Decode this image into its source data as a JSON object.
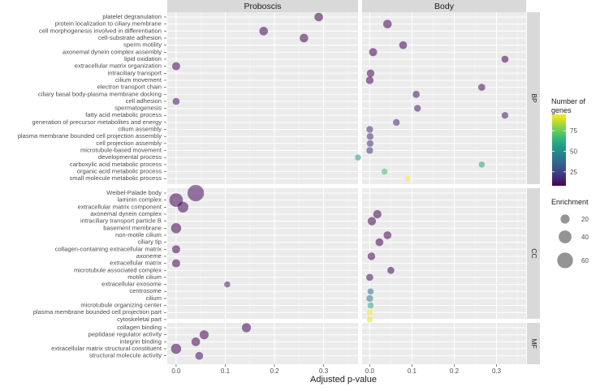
{
  "chart_data": {
    "type": "scatter",
    "xlabel": "Adjusted p-value",
    "xlim": [
      -0.018,
      0.37
    ],
    "x_ticks": [
      0.0,
      0.1,
      0.2,
      0.3
    ],
    "x_tick_labels": [
      "0.0",
      "0.1",
      "0.2",
      "0.3"
    ],
    "columns": [
      {
        "key": "proboscis",
        "title": "Proboscis"
      },
      {
        "key": "body",
        "title": "Body"
      }
    ],
    "groups": [
      {
        "key": "BP",
        "label": "BP",
        "terms": [
          {
            "term": "platelet degranulation",
            "proboscis": {
              "p": 0.29,
              "genes": 8,
              "enrichment": 18
            },
            "body": null
          },
          {
            "term": "protein localization to ciliary membrane",
            "proboscis": null,
            "body": {
              "p": 0.042,
              "genes": 8,
              "enrichment": 18
            }
          },
          {
            "term": "cell morphogenesis involved in differentiation",
            "proboscis": {
              "p": 0.178,
              "genes": 8,
              "enrichment": 18
            },
            "body": null
          },
          {
            "term": "cell-substrate adhesion",
            "proboscis": {
              "p": 0.26,
              "genes": 8,
              "enrichment": 18
            },
            "body": null
          },
          {
            "term": "sperm motility",
            "proboscis": null,
            "body": {
              "p": 0.079,
              "genes": 8,
              "enrichment": 15
            }
          },
          {
            "term": "axonemal dynein complex assembly",
            "proboscis": null,
            "body": {
              "p": 0.008,
              "genes": 8,
              "enrichment": 16
            }
          },
          {
            "term": "lipid oxidation",
            "proboscis": null,
            "body": {
              "p": 0.32,
              "genes": 8,
              "enrichment": 12
            }
          },
          {
            "term": "extracellular matrix organization",
            "proboscis": {
              "p": 0.0,
              "genes": 8,
              "enrichment": 16
            },
            "body": null
          },
          {
            "term": "intraciliary transport",
            "proboscis": null,
            "body": {
              "p": 0.002,
              "genes": 8,
              "enrichment": 14
            }
          },
          {
            "term": "cilium movement",
            "proboscis": null,
            "body": {
              "p": 0.0,
              "genes": 8,
              "enrichment": 14
            }
          },
          {
            "term": "electron transport chain",
            "proboscis": null,
            "body": {
              "p": 0.265,
              "genes": 10,
              "enrichment": 12
            }
          },
          {
            "term": "ciliary basal body-plasma membrane docking",
            "proboscis": null,
            "body": {
              "p": 0.11,
              "genes": 12,
              "enrichment": 12
            }
          },
          {
            "term": "cell adhesion",
            "proboscis": {
              "p": 0.0,
              "genes": 12,
              "enrichment": 12
            },
            "body": null
          },
          {
            "term": "spermatogenesis",
            "proboscis": null,
            "body": {
              "p": 0.113,
              "genes": 14,
              "enrichment": 11
            }
          },
          {
            "term": "fatty acid metabolic process",
            "proboscis": null,
            "body": {
              "p": 0.32,
              "genes": 14,
              "enrichment": 11
            }
          },
          {
            "term": "generation of precursor metabolites and energy",
            "proboscis": null,
            "body": {
              "p": 0.063,
              "genes": 16,
              "enrichment": 11
            }
          },
          {
            "term": "cilium assembly",
            "proboscis": null,
            "body": {
              "p": 0.0,
              "genes": 18,
              "enrichment": 11
            }
          },
          {
            "term": "plasma membrane bounded cell projection assembly",
            "proboscis": null,
            "body": {
              "p": 0.001,
              "genes": 18,
              "enrichment": 11
            }
          },
          {
            "term": "cell projection assembly",
            "proboscis": null,
            "body": {
              "p": 0.001,
              "genes": 18,
              "enrichment": 11
            }
          },
          {
            "term": "microtubule-based movement",
            "proboscis": null,
            "body": {
              "p": 0.0,
              "genes": 20,
              "enrichment": 11
            }
          },
          {
            "term": "developmental process",
            "proboscis": {
              "p": 0.37,
              "genes": 55,
              "enrichment": 9
            },
            "body": null
          },
          {
            "term": "carboxylic acid metabolic process",
            "proboscis": null,
            "body": {
              "p": 0.265,
              "genes": 58,
              "enrichment": 9
            }
          },
          {
            "term": "organic acid metabolic process",
            "proboscis": null,
            "body": {
              "p": 0.035,
              "genes": 68,
              "enrichment": 9
            }
          },
          {
            "term": "small molecule metabolic process",
            "proboscis": null,
            "body": {
              "p": 0.09,
              "genes": 95,
              "enrichment": 7
            }
          }
        ]
      },
      {
        "key": "CC",
        "label": "CC",
        "terms": [
          {
            "term": "Weibel-Palade body",
            "proboscis": {
              "p": 0.04,
              "genes": 10,
              "enrichment": 66
            },
            "body": null
          },
          {
            "term": "laminin complex",
            "proboscis": {
              "p": 0.0,
              "genes": 8,
              "enrichment": 45
            },
            "body": null
          },
          {
            "term": "extracellular matrix component",
            "proboscis": {
              "p": 0.014,
              "genes": 8,
              "enrichment": 28
            },
            "body": null
          },
          {
            "term": "axonemal dynein complex",
            "proboscis": null,
            "body": {
              "p": 0.018,
              "genes": 8,
              "enrichment": 17
            }
          },
          {
            "term": "intraciliary transport particle B",
            "proboscis": null,
            "body": {
              "p": 0.005,
              "genes": 8,
              "enrichment": 17
            }
          },
          {
            "term": "basement membrane",
            "proboscis": {
              "p": 0.0,
              "genes": 8,
              "enrichment": 25
            },
            "body": null
          },
          {
            "term": "non-motile cilium",
            "proboscis": null,
            "body": {
              "p": 0.042,
              "genes": 8,
              "enrichment": 15
            }
          },
          {
            "term": "ciliary tip",
            "proboscis": null,
            "body": {
              "p": 0.023,
              "genes": 8,
              "enrichment": 15
            }
          },
          {
            "term": "collagen-containing extracellular matrix",
            "proboscis": {
              "p": 0.0,
              "genes": 8,
              "enrichment": 16
            },
            "body": null
          },
          {
            "term": "axoneme",
            "proboscis": null,
            "body": {
              "p": 0.004,
              "genes": 8,
              "enrichment": 14
            }
          },
          {
            "term": "extracellular matrix",
            "proboscis": {
              "p": 0.0,
              "genes": 8,
              "enrichment": 16
            },
            "body": null
          },
          {
            "term": "microtubule associated complex",
            "proboscis": null,
            "body": {
              "p": 0.05,
              "genes": 8,
              "enrichment": 12
            }
          },
          {
            "term": "motile cilium",
            "proboscis": null,
            "body": {
              "p": 0.0,
              "genes": 10,
              "enrichment": 12
            }
          },
          {
            "term": "extracellular exosome",
            "proboscis": {
              "p": 0.104,
              "genes": 15,
              "enrichment": 9
            },
            "body": null
          },
          {
            "term": "centrosome",
            "proboscis": null,
            "body": {
              "p": 0.002,
              "genes": 40,
              "enrichment": 9
            }
          },
          {
            "term": "cilium",
            "proboscis": null,
            "body": {
              "p": 0.0,
              "genes": 45,
              "enrichment": 11
            }
          },
          {
            "term": "microtubule organizing center",
            "proboscis": null,
            "body": {
              "p": 0.002,
              "genes": 60,
              "enrichment": 9
            }
          },
          {
            "term": "plasma membrane bounded cell projection part",
            "proboscis": null,
            "body": {
              "p": 0.0,
              "genes": 95,
              "enrichment": 9
            }
          },
          {
            "term": "cytoskeletal part",
            "proboscis": null,
            "body": {
              "p": 0.0,
              "genes": 92,
              "enrichment": 9
            }
          }
        ]
      },
      {
        "key": "MF",
        "label": "MF",
        "terms": [
          {
            "term": "collagen binding",
            "proboscis": {
              "p": 0.143,
              "genes": 8,
              "enrichment": 20
            },
            "body": null
          },
          {
            "term": "peptidase regulator activity",
            "proboscis": {
              "p": 0.057,
              "genes": 8,
              "enrichment": 20
            },
            "body": null
          },
          {
            "term": "integrin binding",
            "proboscis": {
              "p": 0.04,
              "genes": 8,
              "enrichment": 18
            },
            "body": null
          },
          {
            "term": "extracellular matrix structural constituent",
            "proboscis": {
              "p": 0.0,
              "genes": 8,
              "enrichment": 25
            },
            "body": null
          },
          {
            "term": "structural molecule activity",
            "proboscis": {
              "p": 0.047,
              "genes": 10,
              "enrichment": 15
            },
            "body": null
          }
        ]
      }
    ],
    "legend_color": {
      "title_line1": "Number of",
      "title_line2": "genes",
      "range": [
        8,
        95
      ],
      "breaks": [
        25,
        50,
        75
      ],
      "break_labels": [
        "25",
        "50",
        "75"
      ],
      "palette": [
        "#440154",
        "#482878",
        "#3E4A89",
        "#31688E",
        "#26828E",
        "#1F9E89",
        "#35B779",
        "#6DCD59",
        "#B4DE2C",
        "#FDE725"
      ]
    },
    "legend_size": {
      "title": "Enrichment",
      "breaks": [
        20,
        40,
        60
      ],
      "break_labels": [
        "20",
        "40",
        "60"
      ]
    }
  }
}
